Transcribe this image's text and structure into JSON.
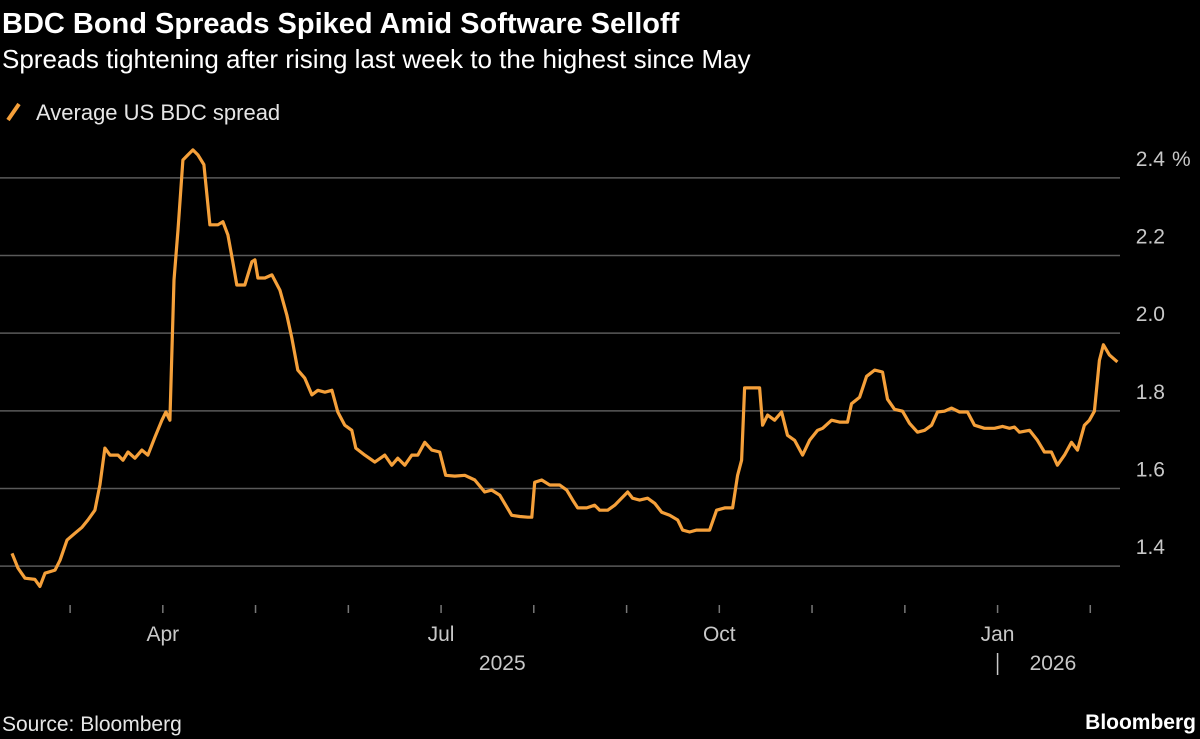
{
  "chart_data": {
    "type": "line",
    "title": "BDC Bond Spreads Spiked Amid Software Selloff",
    "subtitle": "Spreads tightening after rising last week to the highest since May",
    "source": "Source: Bloomberg",
    "brand": "Bloomberg",
    "y_unit": "%",
    "grid": true,
    "legend": "top-left",
    "xlim": [
      2025.11,
      2026.11
    ],
    "ylim": [
      1.3,
      2.5
    ],
    "yticks": [
      1.4,
      1.6,
      1.8,
      {
        "value": 2,
        "label": "2.0"
      },
      2.2,
      2.4
    ],
    "xticks": [
      {
        "value": 2025.25,
        "label": "Apr"
      },
      {
        "value": 2025.5,
        "label": "Jul"
      },
      {
        "value": 2025.75,
        "label": "Oct"
      },
      {
        "value": 2026,
        "label": "Jan"
      }
    ],
    "xminorticks": [
      2025.1667,
      2025.3333,
      2025.4167,
      2025.5833,
      2025.6667,
      2025.8333,
      2025.9167,
      2026.0833
    ],
    "year_labels": [
      "2025",
      "2026"
    ],
    "x": [
      2025.1145,
      2025.1199,
      2025.1262,
      2025.1351,
      2025.1396,
      2025.1441,
      2025.1531,
      2025.1576,
      2025.1639,
      2025.1711,
      2025.1774,
      2025.1827,
      2025.189,
      2025.1935,
      2025.198,
      2025.2025,
      2025.2097,
      2025.2142,
      2025.2187,
      2025.2249,
      2025.2312,
      2025.2366,
      2025.2429,
      2025.2492,
      2025.2528,
      2025.2564,
      2025.26,
      2025.2636,
      2025.268,
      2025.2725,
      2025.277,
      2025.2815,
      2025.2869,
      2025.2923,
      2025.2995,
      2025.304,
      2025.3085,
      2025.3129,
      2025.3165,
      2025.3237,
      2025.33,
      2025.3327,
      2025.3354,
      2025.3417,
      2025.348,
      2025.3552,
      2025.3614,
      2025.3659,
      2025.3713,
      2025.3776,
      2025.3839,
      2025.3893,
      2025.3956,
      2025.4019,
      2025.4072,
      2025.4135,
      2025.4198,
      2025.4234,
      2025.4315,
      2025.4405,
      2025.4494,
      2025.4557,
      2025.4611,
      2025.4674,
      2025.4737,
      2025.4791,
      2025.4854,
      2025.4917,
      2025.4988,
      2025.5042,
      2025.5123,
      2025.5213,
      2025.5303,
      2025.5392,
      2025.5455,
      2025.5527,
      2025.5581,
      2025.5635,
      2025.5707,
      2025.5779,
      2025.5815,
      2025.5841,
      2025.5904,
      2025.5976,
      2025.6066,
      2025.6129,
      2025.6183,
      2025.6228,
      2025.6308,
      2025.638,
      2025.6425,
      2025.6497,
      2025.656,
      2025.6605,
      2025.6677,
      2025.6721,
      2025.6784,
      2025.6856,
      2025.6919,
      2025.6982,
      2025.7054,
      2025.7126,
      2025.717,
      2025.7233,
      2025.7296,
      2025.735,
      2025.7413,
      2025.7476,
      2025.7548,
      2025.7619,
      2025.7664,
      2025.77,
      2025.7727,
      2025.7772,
      2025.7862,
      2025.7889,
      2025.7934,
      2025.7997,
      2025.806,
      2025.8113,
      2025.8176,
      2025.8248,
      2025.8311,
      2025.8383,
      2025.8428,
      2025.8509,
      2025.858,
      2025.8652,
      2025.8688,
      2025.876,
      2025.8823,
      2025.8895,
      2025.8966,
      2025.9011,
      2025.9074,
      2025.9146,
      2025.9209,
      2025.9281,
      2025.9344,
      2025.9407,
      2025.946,
      2025.9523,
      2025.9586,
      2025.9658,
      2025.973,
      2025.9793,
      2025.9882,
      2025.9972,
      2026.0044,
      2026.0107,
      2026.0152,
      2026.0197,
      2026.0287,
      2026.0358,
      2026.0421,
      2026.0484,
      2026.0538,
      2026.0601,
      2026.0664,
      2026.0718,
      2026.078,
      2026.0825,
      2026.087,
      2026.0915,
      2026.0951,
      2026.1005,
      2026.1077
    ],
    "series": [
      {
        "name": "Average US BDC spread",
        "color": "#f5a03a",
        "values": [
          1.433,
          1.395,
          1.369,
          1.366,
          1.348,
          1.382,
          1.39,
          1.415,
          1.467,
          1.485,
          1.5,
          1.519,
          1.544,
          1.609,
          1.704,
          1.686,
          1.686,
          1.673,
          1.694,
          1.678,
          1.699,
          1.686,
          1.732,
          1.776,
          1.797,
          1.776,
          2.137,
          2.266,
          2.446,
          2.459,
          2.472,
          2.459,
          2.434,
          2.279,
          2.279,
          2.287,
          2.253,
          2.184,
          2.124,
          2.124,
          2.184,
          2.189,
          2.142,
          2.142,
          2.15,
          2.111,
          2.047,
          1.988,
          1.905,
          1.884,
          1.841,
          1.853,
          1.848,
          1.853,
          1.797,
          1.763,
          1.75,
          1.704,
          1.686,
          1.668,
          1.686,
          1.66,
          1.678,
          1.66,
          1.686,
          1.686,
          1.719,
          1.699,
          1.694,
          1.634,
          1.632,
          1.634,
          1.622,
          1.591,
          1.596,
          1.583,
          1.557,
          1.531,
          1.528,
          1.526,
          1.526,
          1.616,
          1.622,
          1.609,
          1.609,
          1.596,
          1.57,
          1.55,
          1.55,
          1.557,
          1.544,
          1.544,
          1.557,
          1.57,
          1.591,
          1.575,
          1.57,
          1.575,
          1.562,
          1.539,
          1.531,
          1.519,
          1.493,
          1.488,
          1.493,
          1.493,
          1.493,
          1.544,
          1.55,
          1.55,
          1.634,
          1.673,
          1.859,
          1.859,
          1.859,
          1.763,
          1.789,
          1.776,
          1.797,
          1.737,
          1.724,
          1.686,
          1.724,
          1.75,
          1.755,
          1.776,
          1.771,
          1.771,
          1.818,
          1.835,
          1.889,
          1.905,
          1.9,
          1.83,
          1.804,
          1.799,
          1.768,
          1.745,
          1.75,
          1.763,
          1.797,
          1.799,
          1.807,
          1.797,
          1.797,
          1.763,
          1.755,
          1.755,
          1.76,
          1.755,
          1.758,
          1.745,
          1.75,
          1.724,
          1.694,
          1.694,
          1.66,
          1.686,
          1.719,
          1.699,
          1.763,
          1.776,
          1.799,
          1.93,
          1.97,
          1.944,
          1.926
        ]
      }
    ]
  }
}
